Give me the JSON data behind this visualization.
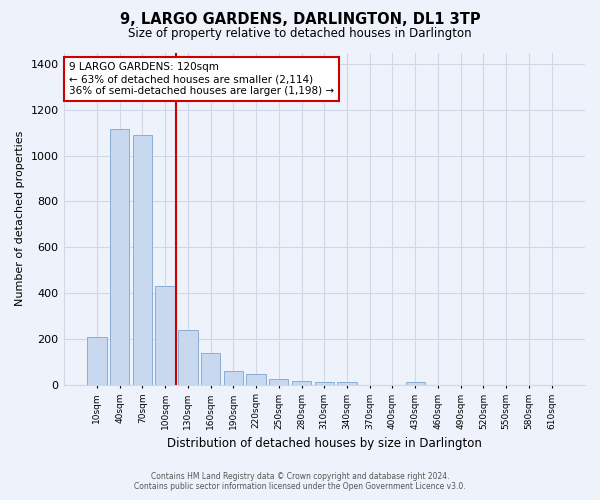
{
  "title": "9, LARGO GARDENS, DARLINGTON, DL1 3TP",
  "subtitle": "Size of property relative to detached houses in Darlington",
  "xlabel": "Distribution of detached houses by size in Darlington",
  "ylabel": "Number of detached properties",
  "bar_color": "#c8d8ef",
  "bar_edge_color": "#8aadd4",
  "highlight_line_color": "#cc0000",
  "annotation_text": "9 LARGO GARDENS: 120sqm\n← 63% of detached houses are smaller (2,114)\n36% of semi-detached houses are larger (1,198) →",
  "annotation_box_color": "#ffffff",
  "annotation_box_edge": "#cc0000",
  "footer_line1": "Contains HM Land Registry data © Crown copyright and database right 2024.",
  "footer_line2": "Contains public sector information licensed under the Open Government Licence v3.0.",
  "categories": [
    "10sqm",
    "40sqm",
    "70sqm",
    "100sqm",
    "130sqm",
    "160sqm",
    "190sqm",
    "220sqm",
    "250sqm",
    "280sqm",
    "310sqm",
    "340sqm",
    "370sqm",
    "400sqm",
    "430sqm",
    "460sqm",
    "490sqm",
    "520sqm",
    "550sqm",
    "580sqm",
    "610sqm"
  ],
  "values": [
    210,
    1115,
    1090,
    430,
    240,
    140,
    60,
    48,
    25,
    18,
    12,
    10,
    0,
    0,
    12,
    0,
    0,
    0,
    0,
    0,
    0
  ],
  "ylim": [
    0,
    1450
  ],
  "yticks": [
    0,
    200,
    400,
    600,
    800,
    1000,
    1200,
    1400
  ],
  "grid_color": "#d0d8e8",
  "background_color": "#eef2fa",
  "plot_bg_color": "#eef2fa"
}
